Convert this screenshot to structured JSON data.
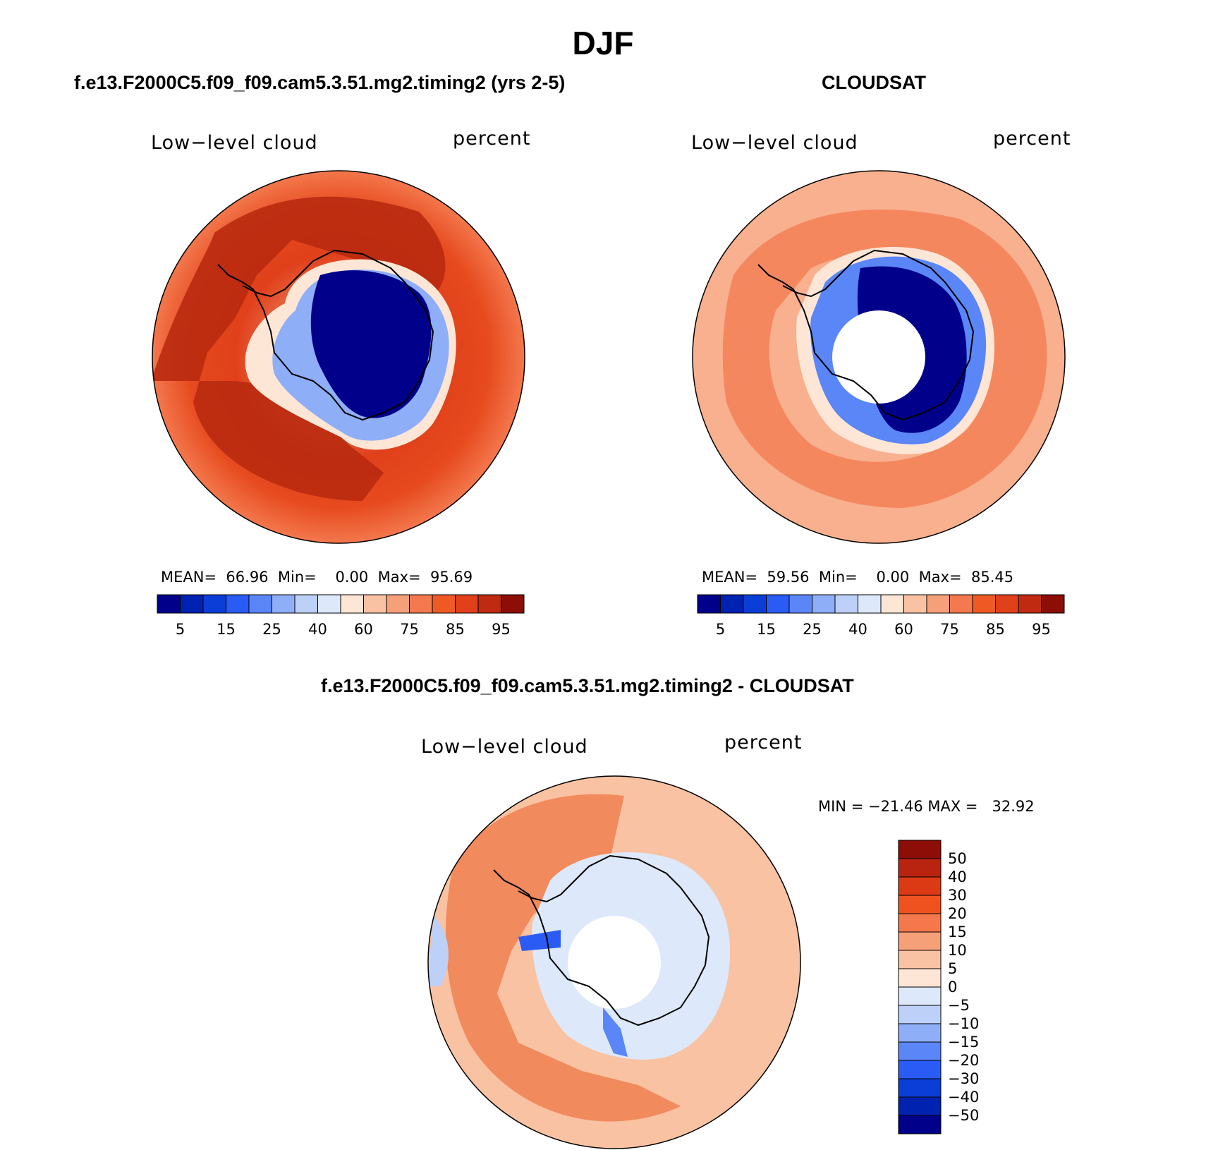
{
  "figure": {
    "title": "DJF"
  },
  "panels": [
    {
      "id": "model",
      "title": "f.e13.F2000C5.f09_f09.cam5.3.51.mg2.timing2 (yrs 2-5)",
      "left_label": "Low−level cloud",
      "right_label": "percent",
      "stats": {
        "mean_label": "MEAN=",
        "mean": "66.96",
        "min_label": "Min=",
        "min": "0.00",
        "max_label": "Max=",
        "max": "95.69"
      }
    },
    {
      "id": "obs",
      "title": "CLOUDSAT",
      "left_label": "Low−level cloud",
      "right_label": "percent",
      "stats": {
        "mean_label": "MEAN=",
        "mean": "59.56",
        "min_label": "Min=",
        "min": "0.00",
        "max_label": "Max=",
        "max": "85.45"
      }
    },
    {
      "id": "diff",
      "title": "f.e13.F2000C5.f09_f09.cam5.3.51.mg2.timing2 - CLOUDSAT",
      "left_label": "Low−level cloud",
      "right_label": "percent",
      "minmax": "MIN = −21.46 MAX =   32.92"
    }
  ],
  "colorbar_horizontal": {
    "tick_labels": [
      "5",
      "15",
      "25",
      "40",
      "60",
      "75",
      "85",
      "95"
    ],
    "colors": [
      "#00008a",
      "#0022b0",
      "#0a3ed6",
      "#2a5cf5",
      "#5a86f7",
      "#8eaef8",
      "#bdd0f8",
      "#dde9fa",
      "#fde6d6",
      "#f9c2a2",
      "#f6a07a",
      "#f4794e",
      "#ef5a24",
      "#e0401a",
      "#c02a10",
      "#8c0e06"
    ]
  },
  "colorbar_vertical": {
    "tick_labels": [
      "50",
      "40",
      "30",
      "20",
      "15",
      "10",
      "5",
      "0",
      "−5",
      "−10",
      "−15",
      "−20",
      "−30",
      "−40",
      "−50"
    ],
    "colors": [
      "#8c0e06",
      "#b82410",
      "#dc3a14",
      "#f0521f",
      "#f4784c",
      "#f6a07a",
      "#f9c2a2",
      "#fde6d6",
      "#dde9fa",
      "#bdd0f8",
      "#8eaef8",
      "#5a86f7",
      "#2a5cf5",
      "#0a3ed6",
      "#0022b0",
      "#00008a"
    ]
  },
  "map_colors": {
    "model_ocean_outer": "#e64a1e",
    "model_ocean_peak": "#b92a0f",
    "model_ice_interior": "#00008a",
    "obs_ocean": "#f8b08e",
    "obs_ocean_band": "#f4794e",
    "obs_ice_interior": "#00008a",
    "diff_ocean": "#f9c2a2",
    "diff_ocean_band": "#f08050",
    "diff_ice": "#dde9fa",
    "missing": "#ffffff",
    "coastline": "#000000"
  }
}
